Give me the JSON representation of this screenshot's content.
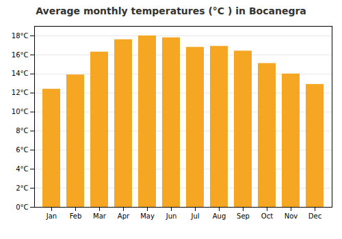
{
  "chart_data": {
    "type": "bar",
    "title": "Average monthly temperatures (°C ) in Bocanegra",
    "categories": [
      "Jan",
      "Feb",
      "Mar",
      "Apr",
      "May",
      "Jun",
      "Jul",
      "Aug",
      "Sep",
      "Oct",
      "Nov",
      "Dec"
    ],
    "values": [
      12.4,
      13.9,
      16.3,
      17.6,
      18.0,
      17.8,
      16.8,
      16.9,
      16.4,
      15.1,
      14.0,
      12.9
    ],
    "color": "#F5A623",
    "ylim": [
      0,
      19
    ],
    "yticks": [
      {
        "value": 0,
        "label": "0°C"
      },
      {
        "value": 2,
        "label": "2°C"
      },
      {
        "value": 4,
        "label": "4°C"
      },
      {
        "value": 6,
        "label": "6°C"
      },
      {
        "value": 8,
        "label": "8°C"
      },
      {
        "value": 10,
        "label": "10°C"
      },
      {
        "value": 12,
        "label": "12°C"
      },
      {
        "value": 14,
        "label": "14°C"
      },
      {
        "value": 16,
        "label": "16°C"
      },
      {
        "value": 18,
        "label": "18°C"
      }
    ],
    "grid": true
  }
}
